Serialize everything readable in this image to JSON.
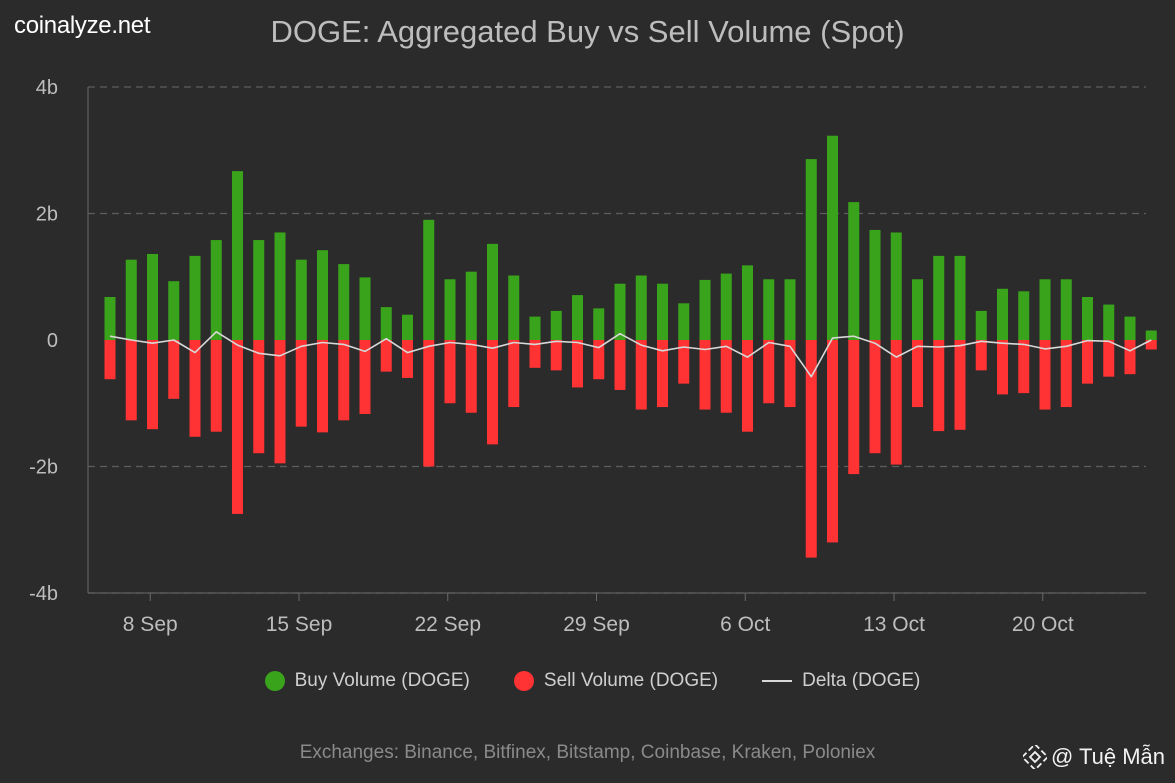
{
  "brand": "coinalyze.net",
  "title": "DOGE: Aggregated Buy vs Sell Volume (Spot)",
  "legend": {
    "buy": "Buy Volume (DOGE)",
    "sell": "Sell Volume (DOGE)",
    "delta": "Delta (DOGE)"
  },
  "footer": "Exchanges: Binance, Bitfinex, Bitstamp, Coinbase, Kraken, Poloniex",
  "watermark": "@ Tuệ Mẫn",
  "colors": {
    "buy": "#3aa31c",
    "sell": "#ff3333",
    "delta": "#d8d8d8",
    "grid": "#5e5e5e",
    "axis": "#bdbdbd"
  },
  "chart_data": {
    "type": "bar",
    "units": "billions DOGE",
    "ylim": [
      -4,
      4
    ],
    "yticks": [
      4,
      2,
      0,
      -2,
      -4
    ],
    "ytick_labels": [
      "4b",
      "2b",
      "0",
      "-2b",
      "-4b"
    ],
    "xtick_labels": [
      "8 Sep",
      "15 Sep",
      "22 Sep",
      "29 Sep",
      "6 Oct",
      "13 Oct",
      "20 Oct"
    ],
    "xtick_index": [
      1,
      8,
      15,
      22,
      29,
      36,
      43
    ],
    "categories": [
      "7 Sep",
      "8 Sep",
      "9 Sep",
      "10 Sep",
      "11 Sep",
      "12 Sep",
      "13 Sep",
      "14 Sep",
      "15 Sep",
      "16 Sep",
      "17 Sep",
      "18 Sep",
      "19 Sep",
      "20 Sep",
      "21 Sep",
      "22 Sep",
      "23 Sep",
      "24 Sep",
      "25 Sep",
      "26 Sep",
      "27 Sep",
      "28 Sep",
      "29 Sep",
      "30 Sep",
      "1 Oct",
      "2 Oct",
      "3 Oct",
      "4 Oct",
      "5 Oct",
      "6 Oct",
      "7 Oct",
      "8 Oct",
      "9 Oct",
      "10 Oct",
      "11 Oct",
      "12 Oct",
      "13 Oct",
      "14 Oct",
      "15 Oct",
      "16 Oct",
      "17 Oct",
      "18 Oct",
      "19 Oct",
      "20 Oct",
      "21 Oct",
      "22 Oct",
      "23 Oct",
      "24 Oct",
      "25 Oct",
      "26 Oct"
    ],
    "series": [
      {
        "name": "Buy Volume (DOGE)",
        "values": [
          0.68,
          1.27,
          1.36,
          0.93,
          1.33,
          1.58,
          2.67,
          1.58,
          1.7,
          1.27,
          1.42,
          1.2,
          0.99,
          0.52,
          0.4,
          1.9,
          0.96,
          1.08,
          1.52,
          1.02,
          0.37,
          0.46,
          0.71,
          0.5,
          0.89,
          1.02,
          0.89,
          0.58,
          0.95,
          1.05,
          1.18,
          0.96,
          0.96,
          2.86,
          3.23,
          2.18,
          1.74,
          1.7,
          0.96,
          1.33,
          1.33,
          0.46,
          0.81,
          0.77,
          0.96,
          0.96,
          0.68,
          0.56,
          0.37,
          0.15
        ]
      },
      {
        "name": "Sell Volume (DOGE)",
        "values": [
          -0.62,
          -1.27,
          -1.41,
          -0.93,
          -1.53,
          -1.45,
          -2.75,
          -1.79,
          -1.95,
          -1.37,
          -1.46,
          -1.27,
          -1.17,
          -0.5,
          -0.6,
          -2.0,
          -1.0,
          -1.15,
          -1.65,
          -1.06,
          -0.44,
          -0.48,
          -0.75,
          -0.62,
          -0.79,
          -1.1,
          -1.06,
          -0.69,
          -1.1,
          -1.15,
          -1.45,
          -1.0,
          -1.06,
          -3.44,
          -3.2,
          -2.12,
          -1.79,
          -1.97,
          -1.06,
          -1.44,
          -1.42,
          -0.48,
          -0.86,
          -0.84,
          -1.1,
          -1.06,
          -0.69,
          -0.58,
          -0.54,
          -0.15
        ]
      },
      {
        "name": "Delta (DOGE)",
        "values": [
          0.06,
          0.0,
          -0.05,
          0.0,
          -0.2,
          0.13,
          -0.08,
          -0.21,
          -0.25,
          -0.1,
          -0.04,
          -0.07,
          -0.18,
          0.02,
          -0.2,
          -0.1,
          -0.04,
          -0.07,
          -0.13,
          -0.04,
          -0.07,
          -0.02,
          -0.04,
          -0.12,
          0.1,
          -0.08,
          -0.17,
          -0.11,
          -0.15,
          -0.1,
          -0.27,
          -0.04,
          -0.1,
          -0.58,
          0.03,
          0.06,
          -0.05,
          -0.27,
          -0.1,
          -0.11,
          -0.09,
          -0.02,
          -0.05,
          -0.07,
          -0.14,
          -0.1,
          -0.01,
          -0.02,
          -0.17,
          0.0
        ]
      }
    ]
  }
}
